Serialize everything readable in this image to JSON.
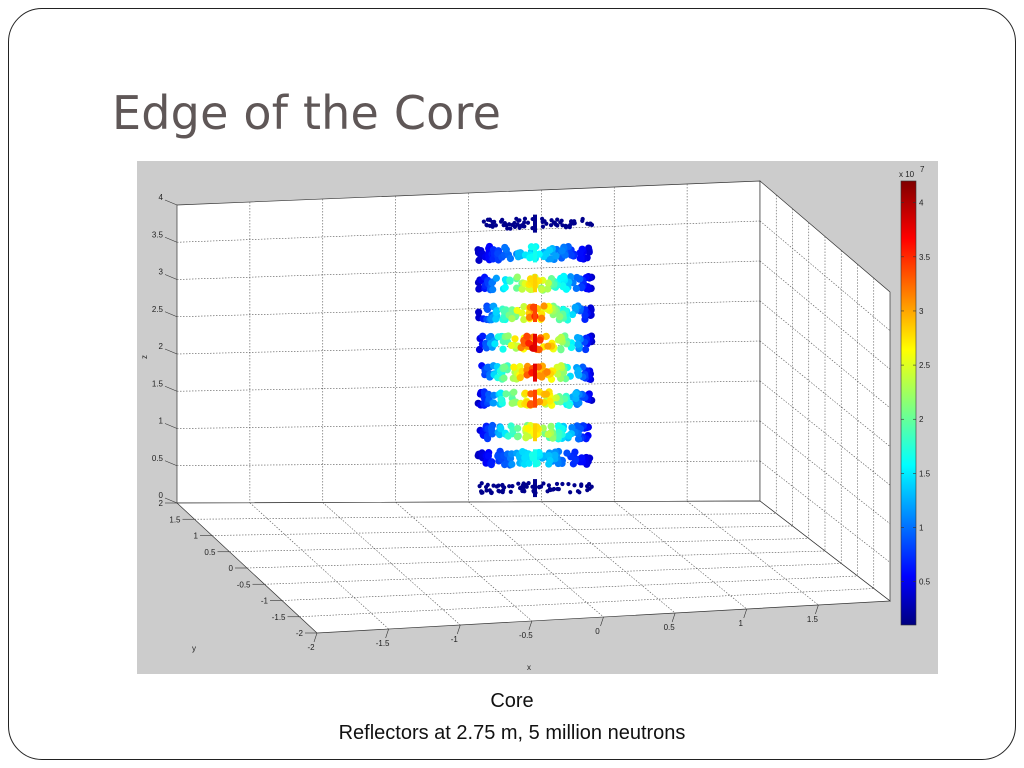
{
  "slide": {
    "title": "Edge of the Core",
    "caption_line1": "Core",
    "caption_line2": "Reflectors at 2.75 m, 5 million neutrons"
  },
  "chart_data": {
    "type": "scatter3d",
    "xlabel": "x",
    "ylabel": "y",
    "zlabel": "z",
    "xlim": [
      -2,
      2
    ],
    "ylim": [
      -2,
      2
    ],
    "zlim": [
      0,
      4
    ],
    "x_ticks": [
      "-2",
      "-1.5",
      "-1",
      "-0.5",
      "0",
      "0.5",
      "1",
      "1.5"
    ],
    "y_ticks": [
      "-2",
      "-1.5",
      "-1",
      "-0.5",
      "0",
      "0.5",
      "1",
      "1.5",
      "2"
    ],
    "z_ticks": [
      "0",
      "0.5",
      "1",
      "1.5",
      "2",
      "2.5",
      "3",
      "3.5",
      "4"
    ],
    "grid": true,
    "colormap": "jet",
    "colorbar": {
      "exponent_label": "x 10",
      "exponent_power": "7",
      "ticks": [
        "0.5",
        "1",
        "1.5",
        "2",
        "2.5",
        "3",
        "3.5",
        "4"
      ],
      "range": [
        0.1,
        4.2
      ]
    },
    "layers_z": [
      0.2,
      0.6,
      0.95,
      1.4,
      1.75,
      2.15,
      2.55,
      2.95,
      3.35,
      3.75
    ],
    "layer_peak_x1e7": [
      0.2,
      1.8,
      3.0,
      3.6,
      4.0,
      4.0,
      3.6,
      3.0,
      1.8,
      0.2
    ]
  }
}
